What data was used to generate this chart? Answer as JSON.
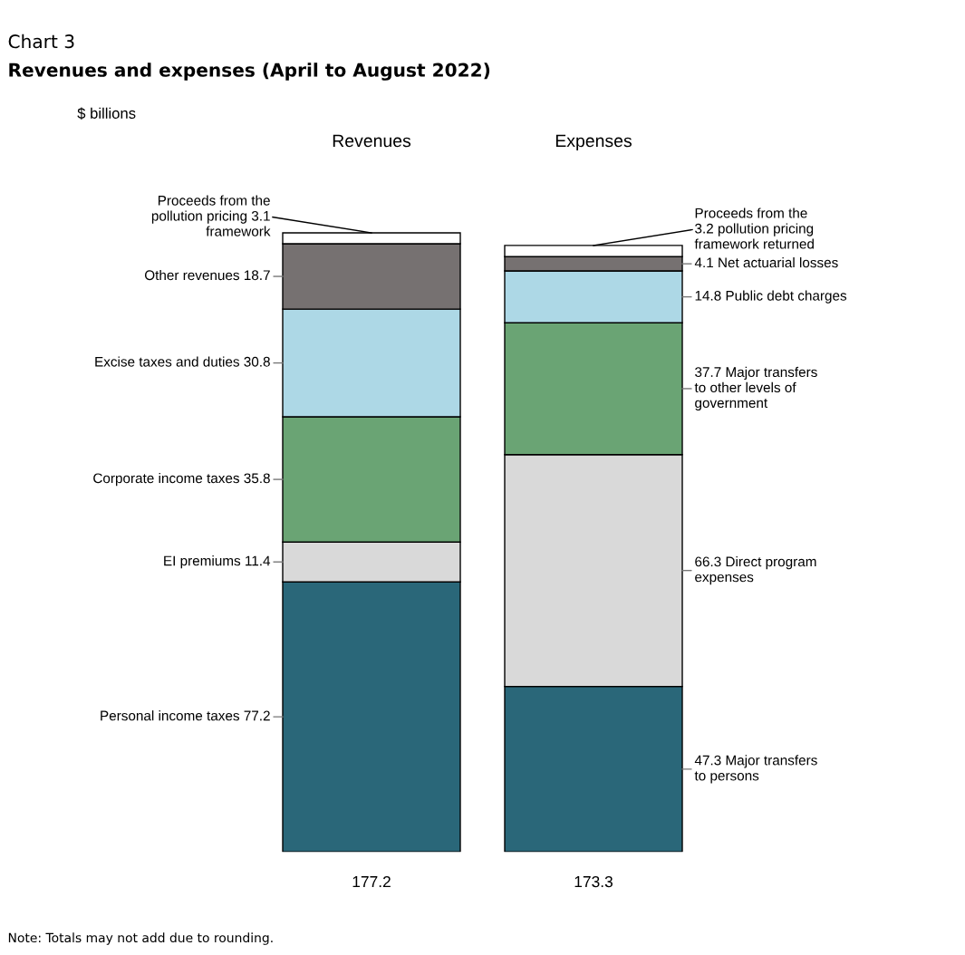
{
  "chart_data": {
    "type": "bar",
    "stacked": true,
    "title": "Chart 3",
    "subtitle": "Revenues and expenses (April to August 2022)",
    "categories": [
      "Revenues",
      "Expenses"
    ],
    "series": [
      {
        "color": "#2a6779",
        "values": [
          77.2,
          null
        ],
        "value_labels": [
          "Personal income taxes 77.2",
          null
        ]
      },
      {
        "color": "#d9d9d9",
        "values": [
          11.4,
          null
        ],
        "value_labels": [
          "EI premiums 11.4",
          null
        ]
      },
      {
        "color": "#6aa474",
        "values": [
          35.8,
          null
        ],
        "value_labels": [
          "Corporate income taxes 35.8",
          null
        ]
      },
      {
        "color": "#add8e6",
        "values": [
          30.8,
          null
        ],
        "value_labels": [
          "Excise taxes and duties 30.8",
          null
        ]
      },
      {
        "color": "#767171",
        "values": [
          18.7,
          null
        ],
        "value_labels": [
          "Other revenues 18.7",
          null
        ]
      },
      {
        "color": "#ffffff",
        "values": [
          3.1,
          null
        ],
        "value_labels": [
          "Proceeds from the\npollution pricing 3.1\nframework",
          null
        ]
      },
      {
        "color": "#2a6779",
        "values": [
          null,
          47.3
        ],
        "value_labels": [
          null,
          "47.3 Major transfers\nto persons"
        ]
      },
      {
        "color": "#d9d9d9",
        "values": [
          null,
          66.3
        ],
        "value_labels": [
          null,
          "66.3 Direct program\nexpenses"
        ]
      },
      {
        "color": "#6aa474",
        "values": [
          null,
          37.7
        ],
        "value_labels": [
          null,
          "37.7 Major transfers\nto other levels of\ngovernment"
        ]
      },
      {
        "color": "#add8e6",
        "values": [
          null,
          14.8
        ],
        "value_labels": [
          null,
          "14.8 Public debt charges"
        ]
      },
      {
        "color": "#767171",
        "values": [
          null,
          4.1
        ],
        "value_labels": [
          null,
          "4.1 Net actuarial losses"
        ]
      },
      {
        "color": "#ffffff",
        "values": [
          null,
          3.2
        ],
        "value_labels": [
          null,
          "Proceeds from the\n3.2 pollution pricing\nframework returned"
        ]
      }
    ],
    "totals": [
      "177.2",
      "173.3"
    ],
    "legend": false,
    "annotations": [
      "$ billions",
      "Note: Totals may not add due to rounding."
    ]
  }
}
